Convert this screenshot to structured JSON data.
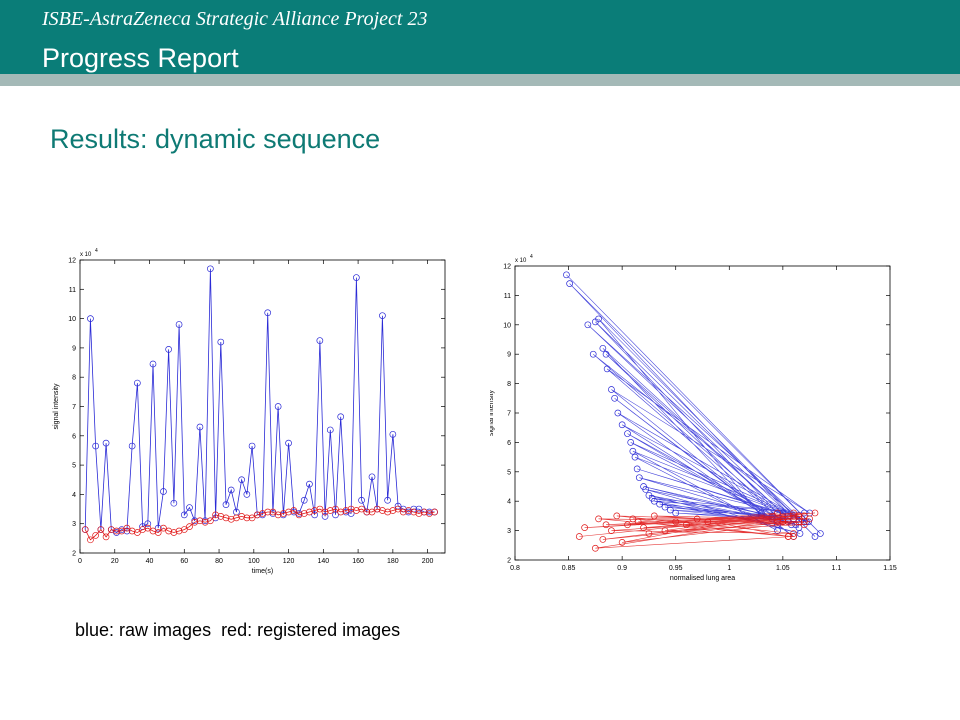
{
  "header": {
    "supertitle": "ISBE-AstraZeneca Strategic Alliance Project 23",
    "title": "Progress Report"
  },
  "section_title": "Results: dynamic sequence",
  "caption": "blue: raw images  red: registered images",
  "colors": {
    "header_bg": "#0a7d78",
    "header_line": "#a4b9b7",
    "section_title": "#0e7a74",
    "raw": "#2a2ad6",
    "registered": "#e01818"
  },
  "chart_data": [
    {
      "type": "line",
      "title": "",
      "xlabel": "time(s)",
      "ylabel": "signal intensity",
      "y_exponent_label": "x 10",
      "y_exponent": "4",
      "xlim": [
        0,
        210
      ],
      "ylim": [
        2,
        12
      ],
      "xticks": [
        0,
        20,
        40,
        60,
        80,
        100,
        120,
        140,
        160,
        180,
        200
      ],
      "yticks": [
        2,
        3,
        4,
        5,
        6,
        7,
        8,
        9,
        10,
        11,
        12
      ],
      "grid": false,
      "x": [
        3,
        6,
        9,
        12,
        15,
        18,
        21,
        24,
        27,
        30,
        33,
        36,
        39,
        42,
        45,
        48,
        51,
        54,
        57,
        60,
        63,
        66,
        69,
        72,
        75,
        78,
        81,
        84,
        87,
        90,
        93,
        96,
        99,
        102,
        105,
        108,
        111,
        114,
        117,
        120,
        123,
        126,
        129,
        132,
        135,
        138,
        141,
        144,
        147,
        150,
        153,
        156,
        159,
        162,
        165,
        168,
        171,
        174,
        177,
        180,
        183,
        186,
        189,
        192,
        195,
        198,
        201,
        204
      ],
      "series": [
        {
          "name": "blue: raw images",
          "values": [
            2.8,
            10.0,
            5.65,
            2.8,
            5.75,
            2.8,
            2.7,
            2.8,
            2.75,
            5.65,
            7.8,
            2.9,
            3.0,
            8.45,
            2.85,
            4.1,
            8.95,
            3.7,
            9.8,
            3.3,
            3.55,
            3.1,
            6.3,
            3.1,
            11.7,
            3.2,
            9.2,
            3.65,
            4.15,
            3.4,
            4.5,
            4.0,
            5.65,
            3.3,
            3.3,
            10.2,
            3.35,
            7.0,
            3.3,
            5.75,
            3.4,
            3.35,
            3.8,
            4.35,
            3.3,
            9.25,
            3.25,
            6.2,
            3.3,
            6.65,
            3.4,
            3.35,
            11.4,
            3.8,
            3.4,
            4.6,
            3.5,
            10.1,
            3.8,
            6.05,
            3.6,
            3.5,
            3.4,
            3.5,
            3.5,
            3.4,
            3.4,
            3.4
          ]
        },
        {
          "name": "red: registered images",
          "values": [
            2.8,
            2.45,
            2.6,
            2.8,
            2.55,
            2.8,
            2.75,
            2.75,
            2.85,
            2.75,
            2.7,
            2.8,
            2.85,
            2.75,
            2.7,
            2.85,
            2.75,
            2.7,
            2.75,
            2.8,
            2.9,
            3.05,
            3.1,
            3.05,
            3.1,
            3.3,
            3.25,
            3.2,
            3.15,
            3.2,
            3.25,
            3.2,
            3.2,
            3.3,
            3.35,
            3.4,
            3.4,
            3.3,
            3.35,
            3.4,
            3.45,
            3.3,
            3.35,
            3.4,
            3.45,
            3.5,
            3.4,
            3.45,
            3.5,
            3.4,
            3.45,
            3.5,
            3.45,
            3.5,
            3.4,
            3.4,
            3.5,
            3.45,
            3.4,
            3.45,
            3.5,
            3.4,
            3.45,
            3.4,
            3.35,
            3.4,
            3.35,
            3.4
          ]
        }
      ]
    },
    {
      "type": "scatter",
      "title": "",
      "xlabel": "normalised lung area",
      "ylabel": "signal intensity",
      "y_exponent_label": "x 10",
      "y_exponent": "4",
      "xlim": [
        0.8,
        1.15
      ],
      "ylim": [
        2,
        12
      ],
      "xticks": [
        0.8,
        0.85,
        0.9,
        0.95,
        1,
        1.05,
        1.1,
        1.15
      ],
      "yticks": [
        2,
        3,
        4,
        5,
        6,
        7,
        8,
        9,
        10,
        11,
        12
      ],
      "grid": false,
      "series": [
        {
          "name": "blue: raw images",
          "x": [
            0.848,
            1.085,
            0.851,
            1.06,
            0.868,
            1.07,
            0.873,
            1.045,
            0.875,
            1.08,
            0.878,
            1.03,
            0.882,
            1.065,
            0.885,
            1.05,
            0.886,
            1.075,
            0.89,
            1.04,
            0.893,
            1.06,
            0.896,
            1.072,
            0.9,
            1.03,
            0.905,
            1.058,
            0.908,
            1.068,
            0.91,
            1.045,
            0.912,
            1.074,
            0.914,
            1.05,
            0.916,
            1.062,
            0.92,
            1.04,
            0.922,
            1.066,
            0.925,
            1.055,
            0.928,
            1.07,
            0.93,
            1.045,
            0.935,
            1.06,
            0.94,
            1.05,
            0.945,
            1.065,
            0.95,
            1.06
          ],
          "y": [
            11.7,
            2.9,
            11.4,
            3.4,
            10.0,
            3.3,
            9.0,
            3.6,
            10.1,
            2.8,
            10.2,
            3.5,
            9.2,
            3.1,
            9.0,
            3.3,
            8.5,
            3.6,
            7.8,
            3.4,
            7.5,
            2.8,
            7.0,
            3.3,
            6.6,
            3.6,
            6.3,
            3.2,
            6.0,
            3.4,
            5.7,
            3.0,
            5.5,
            3.3,
            5.1,
            3.6,
            4.8,
            3.2,
            4.5,
            3.5,
            4.4,
            2.9,
            4.2,
            3.3,
            4.1,
            3.6,
            4.0,
            3.2,
            3.9,
            3.4,
            3.8,
            3.5,
            3.7,
            3.3,
            3.6,
            3.4
          ]
        },
        {
          "name": "red: registered images",
          "x": [
            0.86,
            1.08,
            0.865,
            1.07,
            0.875,
            1.06,
            0.878,
            1.055,
            0.882,
            1.065,
            0.885,
            1.05,
            0.89,
            1.06,
            0.895,
            1.07,
            0.9,
            1.045,
            0.905,
            1.075,
            0.91,
            1.055,
            0.915,
            1.06,
            0.92,
            1.065,
            0.925,
            1.05,
            0.93,
            1.07,
            0.94,
            1.06,
            0.95,
            1.045,
            0.96,
            1.055,
            0.97,
            1.065,
            0.98,
            1.05
          ],
          "y": [
            2.8,
            3.6,
            3.1,
            3.5,
            2.4,
            2.8,
            3.4,
            3.3,
            2.7,
            3.5,
            3.2,
            3.4,
            3.0,
            2.9,
            3.5,
            3.3,
            2.6,
            3.6,
            3.2,
            3.4,
            3.4,
            2.8,
            3.3,
            3.5,
            3.1,
            3.3,
            2.9,
            3.4,
            3.5,
            3.2,
            3.0,
            3.6,
            3.3,
            3.3,
            3.2,
            2.8,
            3.4,
            3.5,
            3.3,
            3.3
          ]
        }
      ]
    }
  ]
}
